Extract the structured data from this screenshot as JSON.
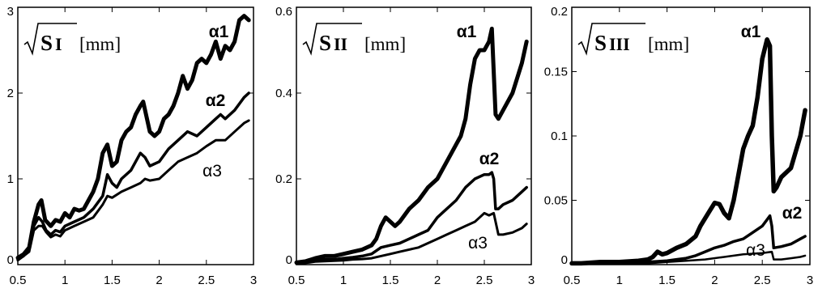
{
  "chart_data": [
    {
      "type": "line",
      "ylabel": {
        "main": "S",
        "sub": "I",
        "unit": "[mm]"
      },
      "xlim": [
        0.5,
        3
      ],
      "ylim": [
        0,
        3
      ],
      "xticks": [
        "0.5",
        "1",
        "1.5",
        "2",
        "2.5",
        "3"
      ],
      "yticks": [
        "0",
        "1",
        "2",
        "3"
      ],
      "series": [
        {
          "name": "α1",
          "width": 5,
          "x": [
            0.5,
            0.56,
            0.62,
            0.67,
            0.72,
            0.75,
            0.79,
            0.85,
            0.9,
            0.95,
            1.0,
            1.05,
            1.1,
            1.15,
            1.2,
            1.25,
            1.3,
            1.35,
            1.4,
            1.45,
            1.5,
            1.55,
            1.6,
            1.65,
            1.7,
            1.75,
            1.8,
            1.83,
            1.86,
            1.9,
            1.95,
            2.0,
            2.05,
            2.1,
            2.15,
            2.2,
            2.25,
            2.3,
            2.35,
            2.4,
            2.45,
            2.5,
            2.55,
            2.6,
            2.65,
            2.7,
            2.75,
            2.8,
            2.85,
            2.9,
            2.95
          ],
          "y": [
            0.08,
            0.12,
            0.2,
            0.5,
            0.7,
            0.75,
            0.52,
            0.45,
            0.52,
            0.5,
            0.6,
            0.55,
            0.65,
            0.63,
            0.65,
            0.75,
            0.85,
            1.0,
            1.3,
            1.4,
            1.15,
            1.2,
            1.45,
            1.55,
            1.6,
            1.75,
            1.85,
            1.9,
            1.75,
            1.55,
            1.5,
            1.55,
            1.7,
            1.75,
            1.85,
            2.0,
            2.2,
            2.05,
            2.15,
            2.35,
            2.4,
            2.35,
            2.45,
            2.6,
            2.4,
            2.55,
            2.5,
            2.6,
            2.85,
            2.9,
            2.85
          ]
        },
        {
          "name": "α2",
          "width": 3.5,
          "x": [
            0.5,
            0.56,
            0.62,
            0.67,
            0.72,
            0.76,
            0.8,
            0.85,
            0.9,
            0.95,
            1.0,
            1.1,
            1.2,
            1.3,
            1.4,
            1.45,
            1.5,
            1.55,
            1.6,
            1.7,
            1.8,
            1.85,
            1.9,
            2.0,
            2.1,
            2.2,
            2.3,
            2.4,
            2.5,
            2.6,
            2.65,
            2.7,
            2.8,
            2.9,
            2.95
          ],
          "y": [
            0.06,
            0.1,
            0.18,
            0.45,
            0.55,
            0.5,
            0.4,
            0.35,
            0.4,
            0.38,
            0.45,
            0.5,
            0.55,
            0.65,
            0.8,
            1.05,
            0.95,
            0.9,
            1.0,
            1.1,
            1.3,
            1.25,
            1.15,
            1.2,
            1.35,
            1.45,
            1.55,
            1.5,
            1.6,
            1.7,
            1.75,
            1.7,
            1.8,
            1.95,
            2.0
          ]
        },
        {
          "name": "α3",
          "width": 3,
          "x": [
            0.5,
            0.56,
            0.62,
            0.67,
            0.72,
            0.76,
            0.8,
            0.85,
            0.9,
            0.95,
            1.0,
            1.1,
            1.2,
            1.3,
            1.4,
            1.45,
            1.5,
            1.6,
            1.7,
            1.8,
            1.85,
            1.9,
            2.0,
            2.1,
            2.2,
            2.3,
            2.4,
            2.5,
            2.6,
            2.7,
            2.8,
            2.9,
            2.95
          ],
          "y": [
            0.05,
            0.1,
            0.15,
            0.4,
            0.45,
            0.45,
            0.38,
            0.32,
            0.35,
            0.33,
            0.4,
            0.45,
            0.5,
            0.55,
            0.7,
            0.8,
            0.78,
            0.85,
            0.9,
            0.95,
            1.0,
            0.98,
            1.0,
            1.1,
            1.2,
            1.25,
            1.3,
            1.38,
            1.45,
            1.45,
            1.55,
            1.65,
            1.68
          ]
        }
      ]
    },
    {
      "type": "line",
      "ylabel": {
        "main": "S",
        "sub": "II",
        "unit": "[mm]"
      },
      "xlim": [
        0.5,
        3
      ],
      "ylim": [
        0,
        0.6
      ],
      "xticks": [
        "0.5",
        "1",
        "1.5",
        "2",
        "2.5",
        "3"
      ],
      "yticks": [
        "0",
        "0.2",
        "0.4",
        "0.6"
      ],
      "series": [
        {
          "name": "α1",
          "width": 5,
          "x": [
            0.5,
            0.6,
            0.7,
            0.8,
            0.9,
            1.0,
            1.1,
            1.2,
            1.3,
            1.35,
            1.4,
            1.45,
            1.5,
            1.55,
            1.6,
            1.7,
            1.8,
            1.9,
            2.0,
            2.1,
            2.2,
            2.25,
            2.3,
            2.35,
            2.4,
            2.45,
            2.5,
            2.55,
            2.58,
            2.6,
            2.62,
            2.65,
            2.7,
            2.8,
            2.9,
            2.95
          ],
          "y": [
            0.005,
            0.008,
            0.015,
            0.02,
            0.02,
            0.025,
            0.03,
            0.035,
            0.045,
            0.06,
            0.09,
            0.11,
            0.1,
            0.09,
            0.1,
            0.13,
            0.15,
            0.18,
            0.2,
            0.24,
            0.28,
            0.3,
            0.34,
            0.42,
            0.48,
            0.5,
            0.5,
            0.52,
            0.55,
            0.45,
            0.35,
            0.34,
            0.36,
            0.4,
            0.47,
            0.52
          ]
        },
        {
          "name": "α2",
          "width": 3.5,
          "x": [
            0.5,
            0.6,
            0.7,
            0.8,
            0.9,
            1.0,
            1.1,
            1.2,
            1.3,
            1.4,
            1.5,
            1.6,
            1.7,
            1.8,
            1.9,
            2.0,
            2.1,
            2.2,
            2.3,
            2.4,
            2.5,
            2.55,
            2.58,
            2.6,
            2.62,
            2.65,
            2.7,
            2.8,
            2.9,
            2.95
          ],
          "y": [
            0.003,
            0.005,
            0.01,
            0.012,
            0.012,
            0.015,
            0.017,
            0.02,
            0.025,
            0.04,
            0.045,
            0.05,
            0.06,
            0.07,
            0.08,
            0.11,
            0.13,
            0.15,
            0.18,
            0.2,
            0.21,
            0.21,
            0.215,
            0.2,
            0.13,
            0.13,
            0.14,
            0.15,
            0.17,
            0.18
          ]
        },
        {
          "name": "α3",
          "width": 3,
          "x": [
            0.5,
            0.6,
            0.7,
            0.8,
            0.9,
            1.0,
            1.1,
            1.2,
            1.3,
            1.4,
            1.5,
            1.6,
            1.7,
            1.8,
            1.9,
            2.0,
            2.1,
            2.2,
            2.3,
            2.4,
            2.45,
            2.5,
            2.55,
            2.6,
            2.65,
            2.7,
            2.8,
            2.9,
            2.95
          ],
          "y": [
            0.002,
            0.004,
            0.007,
            0.008,
            0.009,
            0.01,
            0.012,
            0.013,
            0.015,
            0.02,
            0.025,
            0.03,
            0.035,
            0.04,
            0.05,
            0.06,
            0.07,
            0.08,
            0.09,
            0.1,
            0.11,
            0.12,
            0.115,
            0.12,
            0.07,
            0.07,
            0.075,
            0.085,
            0.095
          ]
        }
      ]
    },
    {
      "type": "line",
      "ylabel": {
        "main": "S",
        "sub": "III",
        "unit": "[mm]"
      },
      "xlim": [
        0.5,
        3
      ],
      "ylim": [
        0,
        0.2
      ],
      "xticks": [
        "0.5",
        "1",
        "1.5",
        "2",
        "2.5",
        "3"
      ],
      "yticks": [
        "0",
        "0.05",
        "0.1",
        "0.15",
        "0.2"
      ],
      "series": [
        {
          "name": "α1",
          "width": 5.5,
          "x": [
            0.5,
            0.6,
            0.8,
            1.0,
            1.2,
            1.3,
            1.35,
            1.4,
            1.45,
            1.5,
            1.6,
            1.7,
            1.8,
            1.85,
            1.9,
            1.95,
            2.0,
            2.05,
            2.1,
            2.15,
            2.2,
            2.25,
            2.3,
            2.35,
            2.4,
            2.45,
            2.5,
            2.55,
            2.58,
            2.6,
            2.62,
            2.65,
            2.7,
            2.8,
            2.9,
            2.95
          ],
          "y": [
            0.001,
            0.001,
            0.002,
            0.002,
            0.003,
            0.004,
            0.006,
            0.01,
            0.008,
            0.009,
            0.013,
            0.016,
            0.022,
            0.03,
            0.036,
            0.042,
            0.048,
            0.047,
            0.04,
            0.036,
            0.05,
            0.07,
            0.09,
            0.1,
            0.108,
            0.13,
            0.16,
            0.175,
            0.17,
            0.1,
            0.057,
            0.06,
            0.068,
            0.075,
            0.1,
            0.12
          ]
        },
        {
          "name": "α2",
          "width": 3.5,
          "x": [
            0.5,
            0.7,
            0.9,
            1.1,
            1.3,
            1.5,
            1.6,
            1.7,
            1.8,
            1.9,
            2.0,
            2.1,
            2.2,
            2.3,
            2.4,
            2.5,
            2.55,
            2.58,
            2.6,
            2.62,
            2.7,
            2.8,
            2.9,
            2.95
          ],
          "y": [
            0.001,
            0.001,
            0.001,
            0.002,
            0.002,
            0.003,
            0.004,
            0.005,
            0.007,
            0.01,
            0.013,
            0.015,
            0.018,
            0.02,
            0.025,
            0.03,
            0.035,
            0.038,
            0.03,
            0.013,
            0.014,
            0.016,
            0.02,
            0.022
          ]
        },
        {
          "name": "α3",
          "width": 2.5,
          "x": [
            0.5,
            0.7,
            0.9,
            1.1,
            1.3,
            1.5,
            1.7,
            1.9,
            2.1,
            2.3,
            2.5,
            2.6,
            2.62,
            2.7,
            2.8,
            2.9,
            2.95
          ],
          "y": [
            0.0005,
            0.0005,
            0.001,
            0.001,
            0.001,
            0.002,
            0.003,
            0.004,
            0.006,
            0.008,
            0.009,
            0.01,
            0.004,
            0.004,
            0.005,
            0.006,
            0.007
          ]
        }
      ]
    }
  ]
}
